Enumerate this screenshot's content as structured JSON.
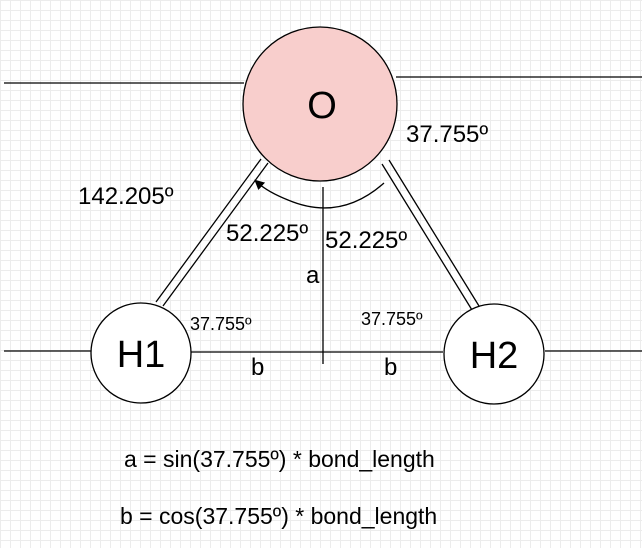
{
  "atoms": {
    "oxygen": {
      "label": "O",
      "fill": "#f8cecc"
    },
    "h1": {
      "label": "H1",
      "fill": "#ffffff"
    },
    "h2": {
      "label": "H2",
      "fill": "#ffffff"
    }
  },
  "angles": {
    "upper_right": "37.755º",
    "left_outer": "142.205º",
    "inner_left": "52.225º",
    "inner_right": "52.225º",
    "h1_angle": "37.755º",
    "h2_angle": "37.755º"
  },
  "segments": {
    "a": "a",
    "b_left": "b",
    "b_right": "b"
  },
  "formulas": {
    "a": "a = sin(37.755º) * bond_length",
    "b": "b = cos(37.755º) * bond_length"
  }
}
